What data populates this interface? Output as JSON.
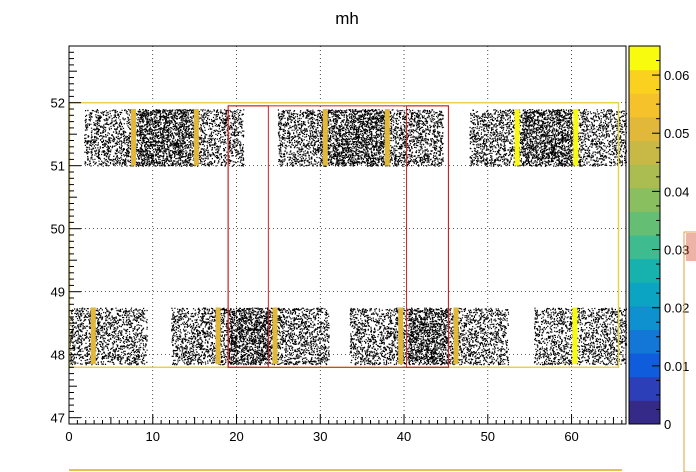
{
  "chart_data": {
    "type": "heatmap",
    "title": "mh",
    "xlabel": "",
    "ylabel": "",
    "xlim": [
      0,
      66.5
    ],
    "ylim": [
      46.9,
      52.9
    ],
    "grid": true,
    "x_ticks": [
      0,
      10,
      20,
      30,
      40,
      50,
      60
    ],
    "y_ticks": [
      47,
      48,
      49,
      50,
      51,
      52
    ],
    "x_tick_labels": [
      "0",
      "10",
      "20",
      "30",
      "40",
      "50",
      "60"
    ],
    "y_tick_labels": [
      "47",
      "48",
      "49",
      "50",
      "51",
      "52"
    ],
    "colorbar": {
      "min": 0,
      "max": 0.065,
      "ticks": [
        0,
        0.01,
        0.02,
        0.03,
        0.04,
        0.05,
        0.06
      ],
      "tick_labels": [
        "0",
        "0.01",
        "0.02",
        "0.03",
        "0.04",
        "0.05",
        "0.06"
      ],
      "colors": [
        "#352a87",
        "#2c3fb8",
        "#0f5cdd",
        "#1277d6",
        "#1091cf",
        "#0ba5c3",
        "#18b2ae",
        "#3fbc8f",
        "#64bf74",
        "#89bf5e",
        "#abbd50",
        "#c8b946",
        "#e1b83a",
        "#f5c22c",
        "#fad11f",
        "#f9fb0e"
      ]
    },
    "blocks": [
      {
        "x": [
          1.8,
          20.8
        ],
        "y": [
          51.0,
          51.9
        ],
        "density": 0.3
      },
      {
        "x": [
          24.9,
          44.6
        ],
        "y": [
          51.0,
          51.9
        ],
        "density": 0.32
      },
      {
        "x": [
          47.8,
          66.5
        ],
        "y": [
          51.0,
          51.9
        ],
        "density": 0.3
      },
      {
        "x": [
          0.0,
          9.3
        ],
        "y": [
          47.85,
          48.75
        ],
        "density": 0.3
      },
      {
        "x": [
          12.2,
          31.0
        ],
        "y": [
          47.85,
          48.75
        ],
        "density": 0.32
      },
      {
        "x": [
          33.5,
          52.4
        ],
        "y": [
          47.85,
          48.75
        ],
        "density": 0.3
      },
      {
        "x": [
          55.5,
          66.5
        ],
        "y": [
          47.85,
          48.75
        ],
        "density": 0.28
      }
    ],
    "dense_regions": [
      {
        "x": [
          8.0,
          14.5
        ],
        "y": [
          51.0,
          51.9
        ]
      },
      {
        "x": [
          30.0,
          38.0
        ],
        "y": [
          51.0,
          51.9
        ]
      },
      {
        "x": [
          54.0,
          60.0
        ],
        "y": [
          51.0,
          51.9
        ]
      },
      {
        "x": [
          19.0,
          24.0
        ],
        "y": [
          47.85,
          48.75
        ]
      },
      {
        "x": [
          40.5,
          45.0
        ],
        "y": [
          47.85,
          48.75
        ]
      }
    ],
    "vertical_bands": [
      {
        "row": "top",
        "x": 7.7,
        "value": 0.052
      },
      {
        "row": "top",
        "x": 15.2,
        "value": 0.052
      },
      {
        "row": "top",
        "x": 30.6,
        "value": 0.052
      },
      {
        "row": "top",
        "x": 38.0,
        "value": 0.052
      },
      {
        "row": "top",
        "x": 53.5,
        "value": 0.063
      },
      {
        "row": "top",
        "x": 60.5,
        "value": 0.063
      },
      {
        "row": "bottom",
        "x": 2.9,
        "value": 0.052
      },
      {
        "row": "bottom",
        "x": 17.8,
        "value": 0.052
      },
      {
        "row": "bottom",
        "x": 24.6,
        "value": 0.052
      },
      {
        "row": "bottom",
        "x": 39.6,
        "value": 0.052
      },
      {
        "row": "bottom",
        "x": 46.2,
        "value": 0.052
      },
      {
        "row": "bottom",
        "x": 60.4,
        "value": 0.063
      }
    ],
    "outline_box": {
      "x": [
        0.0,
        66.5
      ],
      "y": [
        47.8,
        52.0
      ],
      "color": "#e8d24a"
    },
    "red_boxes": [
      {
        "x": [
          19.0,
          23.8
        ],
        "y": [
          47.8,
          51.95
        ]
      },
      {
        "x": [
          19.0,
          45.3
        ],
        "y": [
          47.8,
          51.95
        ]
      },
      {
        "x": [
          40.3,
          45.3
        ],
        "y": [
          47.8,
          51.95
        ]
      }
    ],
    "red_color": "#cc2222"
  }
}
